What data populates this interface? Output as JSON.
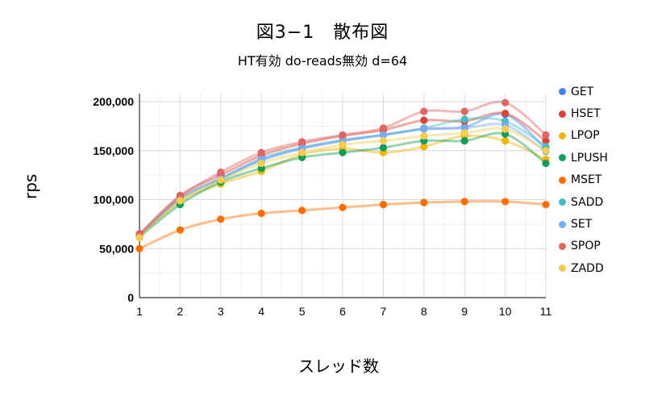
{
  "chart_data": {
    "type": "scatter",
    "title": "図3−1　散布図",
    "subtitle": "HT有効 do-reads無効 d=64",
    "xlabel": "スレッド数",
    "ylabel": "rps",
    "x": [
      1,
      2,
      3,
      4,
      5,
      6,
      7,
      8,
      9,
      10,
      11
    ],
    "ylim": [
      0,
      200000
    ],
    "yticks": [
      "0",
      "50,000",
      "100,000",
      "150,000",
      "200,000"
    ],
    "xticks": [
      "1",
      "2",
      "3",
      "4",
      "5",
      "6",
      "7",
      "8",
      "9",
      "10",
      "11"
    ],
    "legend_position": "right",
    "series": [
      {
        "name": "GET",
        "color": "#4285f4",
        "values": [
          63000,
          101000,
          121000,
          140000,
          152000,
          160000,
          166000,
          172000,
          174000,
          187000,
          152000
        ]
      },
      {
        "name": "HSET",
        "color": "#db4437",
        "values": [
          65000,
          104000,
          125000,
          145000,
          157000,
          165000,
          171000,
          181000,
          180000,
          188000,
          160000
        ]
      },
      {
        "name": "LPOP",
        "color": "#f4b400",
        "values": [
          62000,
          98000,
          116000,
          129000,
          146000,
          152000,
          148000,
          154000,
          165000,
          160000,
          141000
        ]
      },
      {
        "name": "LPUSH",
        "color": "#0f9d58",
        "values": [
          62000,
          95000,
          118000,
          132000,
          143000,
          148000,
          153000,
          160000,
          160000,
          167000,
          137000
        ]
      },
      {
        "name": "MSET",
        "color": "#ff6d00",
        "values": [
          50000,
          69000,
          80000,
          86000,
          89000,
          92000,
          95000,
          97000,
          98000,
          98000,
          95000
        ]
      },
      {
        "name": "SADD",
        "color": "#46bdc6",
        "values": [
          63000,
          100000,
          121000,
          142000,
          153000,
          161000,
          166000,
          173000,
          182000,
          180000,
          154000
        ]
      },
      {
        "name": "SET",
        "color": "#7baaf7",
        "values": [
          62000,
          101000,
          122000,
          141000,
          153000,
          160000,
          166000,
          172000,
          173000,
          176000,
          149000
        ]
      },
      {
        "name": "SPOP",
        "color": "#e06666",
        "values": [
          64000,
          103000,
          128000,
          148000,
          159000,
          166000,
          173000,
          190000,
          190000,
          199000,
          166000
        ]
      },
      {
        "name": "ZADD",
        "color": "#f7cb4d",
        "values": [
          61000,
          99000,
          120000,
          137000,
          148000,
          156000,
          160000,
          165000,
          168000,
          172000,
          150000
        ]
      }
    ]
  }
}
